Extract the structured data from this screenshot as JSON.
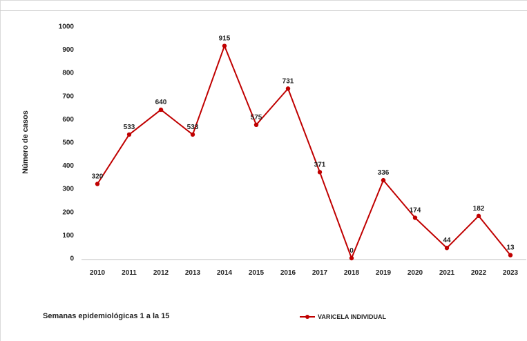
{
  "chart_data": {
    "type": "line",
    "categories": [
      "2010",
      "2011",
      "2012",
      "2013",
      "2014",
      "2015",
      "2016",
      "2017",
      "2018",
      "2019",
      "2020",
      "2021",
      "2022",
      "2023"
    ],
    "series": [
      {
        "name": "VARICELA INDIVIDUAL",
        "values": [
          320,
          533,
          640,
          533,
          915,
          575,
          731,
          371,
          0,
          336,
          174,
          44,
          182,
          13
        ],
        "color": "#c00000"
      }
    ],
    "ylabel": "Número de casos",
    "ylim": [
      0,
      1000
    ],
    "yticks": [
      0,
      100,
      200,
      300,
      400,
      500,
      600,
      700,
      800,
      900,
      1000
    ],
    "grid": false,
    "legend_position": "bottom"
  },
  "footnote": "Semanas epidemiológicas 1 a la 15",
  "legend": {
    "label": "VARICELA INDIVIDUAL"
  }
}
